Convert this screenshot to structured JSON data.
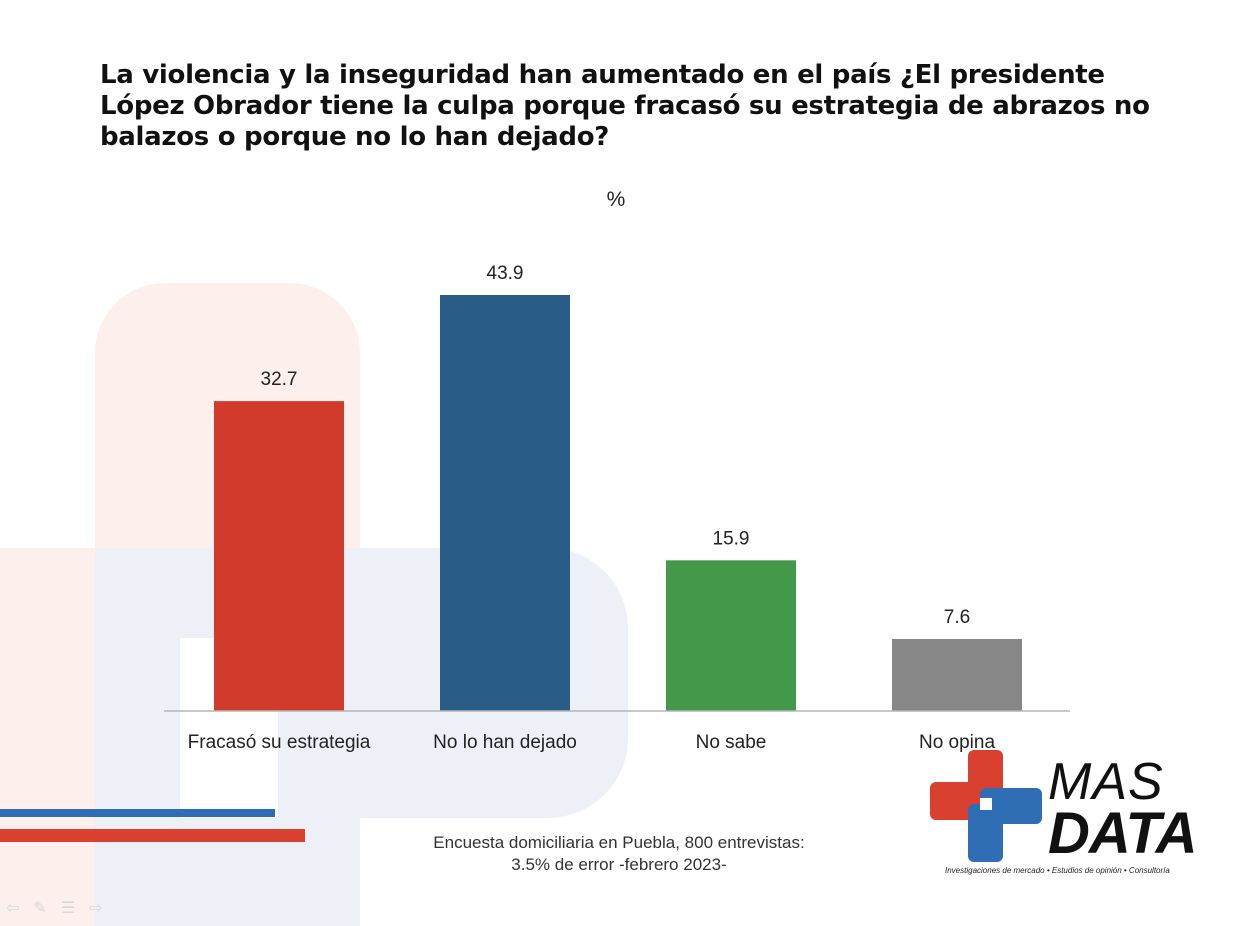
{
  "title": "La violencia y la inseguridad han aumentado en el país ¿El presidente López Obrador tiene la culpa porque fracasó su estrategia de abrazos no balazos o porque no lo han dejado?",
  "unit_label": "%",
  "footnote": {
    "line1": "Encuesta domiciliaria en Puebla, 800 entrevistas:",
    "line2": "3.5% de error -febrero 2023-"
  },
  "logo": {
    "word1": "MAS",
    "word2": "DATA",
    "tagline": "Investigaciones de mercado • Estudios de opinión • Consultoría"
  },
  "colors": {
    "red": "#d13b2c",
    "blue": "#295c86",
    "green": "#43984a",
    "gray": "#878787"
  },
  "chart_data": {
    "type": "bar",
    "categories": [
      "Fracasó su estrategia",
      "No lo han dejado",
      "No sabe",
      "No opina"
    ],
    "values": [
      32.7,
      43.9,
      15.9,
      7.6
    ],
    "value_labels": [
      "32.7",
      "43.9",
      "15.9",
      "7.6"
    ],
    "bar_colors": [
      "#d13b2c",
      "#295c86",
      "#43984a",
      "#878787"
    ],
    "ylim": [
      0,
      43.9
    ],
    "grid": false,
    "legend": "none"
  }
}
